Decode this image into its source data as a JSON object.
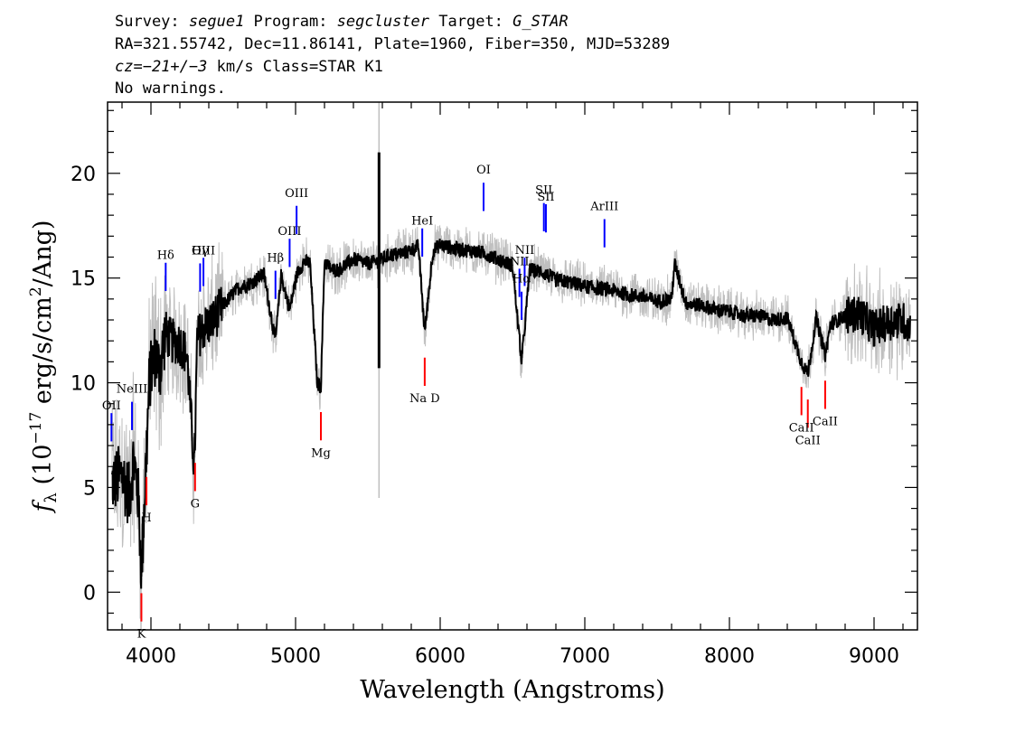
{
  "header": {
    "line1": [
      {
        "text": "Survey: ",
        "italic": false
      },
      {
        "text": "segue1",
        "italic": true
      },
      {
        "text": " Program: ",
        "italic": false
      },
      {
        "text": "segcluster",
        "italic": true
      },
      {
        "text": " Target: ",
        "italic": false
      },
      {
        "text": "G_STAR",
        "italic": true
      }
    ],
    "line2": "RA=321.55742, Dec=11.86141, Plate=1960, Fiber=350, MJD=53289",
    "line3": [
      {
        "text": "cz=",
        "italic": true
      },
      {
        "text": "−21+/−3",
        "italic": true
      },
      {
        "text": " km/s Class=STAR K1",
        "italic": false
      }
    ],
    "line4": "No warnings."
  },
  "chart_data": {
    "type": "line",
    "xlabel": "Wavelength (Angstroms)",
    "ylabel": "fλ (10⁻¹⁷ erg/s/cm²/Ang)",
    "ylabel_parts": {
      "f": "f",
      "sub": "λ",
      "pre": " (10",
      "sup1": "−17",
      "mid": " erg/s/cm",
      "sup2": "2",
      "post": "/Ang)"
    },
    "xlim": [
      3700,
      9300
    ],
    "ylim": [
      -1.8,
      23.4
    ],
    "x_ticks": [
      4000,
      5000,
      6000,
      7000,
      8000,
      9000
    ],
    "x_tick_labels": [
      "4000",
      "5000",
      "6000",
      "7000",
      "8000",
      "9000"
    ],
    "y_ticks": [
      0,
      5,
      10,
      15,
      20
    ],
    "y_tick_labels": [
      "0",
      "5",
      "10",
      "15",
      "20"
    ],
    "grid": false,
    "spectrum_color": "#000000",
    "error_color": "#bfbfbf",
    "emission_color": "#0000ff",
    "absorption_color": "#ff0000",
    "spectrum": {
      "x": [
        3730,
        3800,
        3850,
        3880,
        3910,
        3935,
        3960,
        3990,
        4030,
        4060,
        4100,
        4140,
        4200,
        4250,
        4300,
        4320,
        4360,
        4420,
        4500,
        4600,
        4700,
        4780,
        4861,
        4900,
        4960,
        5010,
        5060,
        5100,
        5150,
        5175,
        5200,
        5250,
        5300,
        5400,
        5500,
        5577,
        5650,
        5750,
        5850,
        5893,
        5950,
        6000,
        6100,
        6200,
        6300,
        6400,
        6500,
        6563,
        6620,
        6700,
        6800,
        6900,
        7000,
        7100,
        7200,
        7300,
        7400,
        7500,
        7600,
        7620,
        7700,
        7800,
        7900,
        8000,
        8100,
        8200,
        8300,
        8400,
        8498,
        8542,
        8600,
        8662,
        8700,
        8800,
        8900,
        9000,
        9100,
        9200,
        9250
      ],
      "y": [
        5.2,
        5.6,
        4.6,
        6.4,
        4.8,
        1.0,
        5.2,
        10.2,
        11.4,
        10.6,
        12.4,
        12.0,
        11.9,
        11.3,
        5.8,
        12.1,
        12.6,
        12.9,
        13.7,
        14.5,
        14.8,
        15.2,
        12.0,
        15.1,
        13.5,
        15.2,
        15.8,
        15.7,
        10.0,
        9.8,
        15.8,
        15.4,
        15.4,
        15.9,
        15.7,
        15.8,
        16.1,
        16.2,
        16.5,
        12.4,
        16.3,
        16.6,
        16.4,
        16.3,
        16.2,
        15.9,
        15.6,
        11.0,
        15.4,
        15.3,
        14.9,
        14.8,
        14.6,
        14.5,
        14.4,
        14.2,
        14.1,
        13.9,
        14.0,
        15.7,
        13.8,
        13.7,
        13.5,
        13.4,
        13.2,
        13.2,
        13.0,
        13.1,
        11.0,
        10.4,
        13.1,
        11.3,
        12.8,
        13.2,
        13.3,
        12.6,
        12.9,
        13.0,
        12.6
      ]
    },
    "emission_lines": [
      {
        "label": "OII",
        "x": 3727
      },
      {
        "label": "NeIII",
        "x": 3869
      },
      {
        "label": "Hδ",
        "x": 4102
      },
      {
        "label": "Hγ",
        "x": 4340
      },
      {
        "label": "OIII",
        "x": 4363
      },
      {
        "label": "Hβ",
        "x": 4861
      },
      {
        "label": "OIII",
        "x": 4959
      },
      {
        "label": "OIII",
        "x": 5007
      },
      {
        "label": "HeI",
        "x": 5876
      },
      {
        "label": "OI",
        "x": 6300
      },
      {
        "label": "NII",
        "x": 6548
      },
      {
        "label": "Hα",
        "x": 6563
      },
      {
        "label": "NII",
        "x": 6584
      },
      {
        "label": "SII",
        "x": 6717
      },
      {
        "label": "SII",
        "x": 6731
      },
      {
        "label": "ArIII",
        "x": 7136
      }
    ],
    "absorption_lines": [
      {
        "label": "K",
        "x": 3934
      },
      {
        "label": "H",
        "x": 3969
      },
      {
        "label": "G",
        "x": 4305
      },
      {
        "label": "Mg",
        "x": 5175
      },
      {
        "label": "Na D",
        "x": 5893
      },
      {
        "label": "CaII",
        "x": 8498
      },
      {
        "label": "CaII",
        "x": 8542
      },
      {
        "label": "CaII",
        "x": 8662
      }
    ]
  }
}
